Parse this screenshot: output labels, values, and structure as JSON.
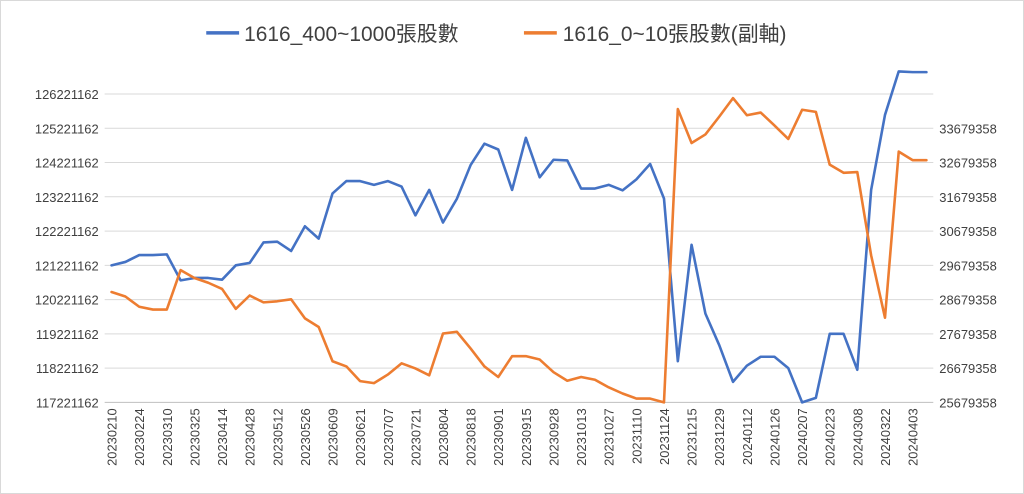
{
  "chart_data": {
    "type": "line",
    "title": "",
    "xlabel": "",
    "ylabel": "",
    "y2label": "",
    "legend_position": "top",
    "grid": "horizontal",
    "ylim": [
      117221162,
      127221162
    ],
    "y2lim": [
      25679358,
      35679358
    ],
    "y_ticks": [
      117221162,
      118221162,
      119221162,
      120221162,
      121221162,
      122221162,
      123221162,
      124221162,
      125221162,
      126221162
    ],
    "y_tick_labels": [
      "117221162",
      "118221162",
      "119221162",
      "120221162",
      "121221162",
      "122221162",
      "123221162",
      "124221162",
      "125221162",
      "126221162"
    ],
    "y2_ticks": [
      25679358,
      26679358,
      27679358,
      28679358,
      29679358,
      30679358,
      31679358,
      32679358,
      33679358
    ],
    "y2_tick_labels": [
      "25679358",
      "26679358",
      "27679358",
      "28679358",
      "29679358",
      "30679358",
      "31679358",
      "32679358",
      "33679358"
    ],
    "x_tick_labels": [
      "20230210",
      "20230224",
      "20230310",
      "20230325",
      "20230414",
      "20230428",
      "20230512",
      "20230526",
      "20230609",
      "20230621",
      "20230707",
      "20230721",
      "20230804",
      "20230818",
      "20230901",
      "20230915",
      "20230928",
      "20231013",
      "20231027",
      "20231110",
      "20231124",
      "20231215",
      "20231229",
      "20240112",
      "20240126",
      "20240207",
      "20240223",
      "20240308",
      "20240322",
      "20240403"
    ],
    "point_count": 60,
    "series": [
      {
        "name": "1616_400~1000張股數",
        "axis": "primary",
        "color": "#4472c4",
        "values": [
          121221162,
          121321162,
          121521162,
          121521162,
          121541162,
          120781162,
          120851162,
          120851162,
          120801162,
          121221162,
          121291162,
          121891162,
          121911162,
          121641162,
          122361162,
          122001162,
          123321162,
          123681162,
          123681162,
          123571162,
          123681162,
          123521162,
          122681162,
          123421162,
          122471162,
          123161162,
          124151162,
          124771162,
          124601162,
          123421162,
          124941162,
          123791162,
          124301162,
          124281162,
          123461162,
          123461162,
          123571162,
          123411162,
          123731162,
          124181162,
          123171162,
          118421162,
          121821162,
          119811162,
          118891162,
          117821162,
          118291162,
          118551162,
          118551162,
          118221162,
          117221162,
          117351162,
          119221162,
          119221162,
          118171162,
          123421162,
          125611162,
          126881162,
          126861162,
          126861162
        ]
      },
      {
        "name": "1616_0~10張股數(副軸)",
        "axis": "secondary",
        "color": "#ed7d31",
        "values": [
          28899358,
          28769358,
          28469358,
          28389358,
          28389358,
          29539358,
          29309358,
          29169358,
          28989358,
          28409358,
          28799358,
          28599358,
          28629358,
          28689358,
          28129358,
          27879358,
          26879358,
          26729358,
          26299358,
          26239358,
          26489358,
          26819358,
          26669358,
          26469358,
          27689358,
          27739358,
          27249358,
          26729358,
          26419358,
          27029358,
          27029358,
          26929358,
          26559358,
          26309358,
          26419358,
          26339358,
          26119358,
          25939358,
          25789358,
          25789358,
          25679358,
          34239358,
          33249358,
          33499358,
          34019358,
          34559358,
          34059358,
          34139358,
          33759358,
          33369358,
          34219358,
          34159358,
          32619358,
          32379358,
          32399358,
          29969358,
          28149358,
          32999358,
          32749358,
          32749358
        ]
      }
    ]
  }
}
